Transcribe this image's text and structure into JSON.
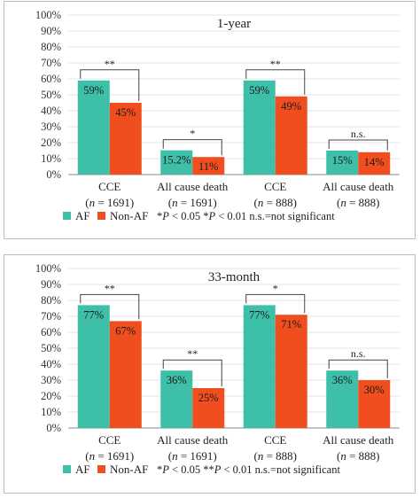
{
  "chart_data": [
    {
      "type": "bar",
      "title": "1-year",
      "categories": [
        "CCE",
        "All cause death",
        "CCE",
        "All cause death"
      ],
      "category_sublabels": [
        "(n = 1691)",
        "(n = 1691)",
        "(n = 888)",
        "(n = 888)"
      ],
      "series": [
        {
          "name": "AF",
          "values": [
            59,
            15.2,
            59,
            15
          ],
          "labels": [
            "59%",
            "15.2%",
            "59%",
            "15%"
          ],
          "color": "#3dbfa8"
        },
        {
          "name": "Non-AF",
          "values": [
            45,
            11,
            49,
            14
          ],
          "labels": [
            "45%",
            "11%",
            "49%",
            "14%"
          ],
          "color": "#f04e1f"
        }
      ],
      "significance": [
        "**",
        "*",
        "**",
        "n.s."
      ],
      "ylim": [
        0,
        100
      ],
      "yticks": [
        "0%",
        "10%",
        "20%",
        "30%",
        "40%",
        "50%",
        "60%",
        "70%",
        "80%",
        "90%",
        "100%"
      ],
      "legend_note": "*P < 0.05   *P < 0.01  n.s.=not significant",
      "legend_placement": "bottom"
    },
    {
      "type": "bar",
      "title": "33-month",
      "categories": [
        "CCE",
        "All cause death",
        "CCE",
        "All cause death"
      ],
      "category_sublabels": [
        "(n = 1691)",
        "(n = 1691)",
        "(n = 888)",
        "(n = 888)"
      ],
      "series": [
        {
          "name": "AF",
          "values": [
            77,
            36,
            77,
            36
          ],
          "labels": [
            "77%",
            "36%",
            "77%",
            "36%"
          ],
          "color": "#3dbfa8"
        },
        {
          "name": "Non-AF",
          "values": [
            67,
            25,
            71,
            30
          ],
          "labels": [
            "67%",
            "25%",
            "71%",
            "30%"
          ],
          "color": "#f04e1f"
        }
      ],
      "significance": [
        "**",
        "**",
        "*",
        "n.s."
      ],
      "ylim": [
        0,
        100
      ],
      "yticks": [
        "0%",
        "10%",
        "20%",
        "30%",
        "40%",
        "50%",
        "60%",
        "70%",
        "80%",
        "90%",
        "100%"
      ],
      "legend_note": "*P < 0.05   **P < 0.01  n.s.=not significant",
      "legend_placement": "bottom"
    }
  ]
}
